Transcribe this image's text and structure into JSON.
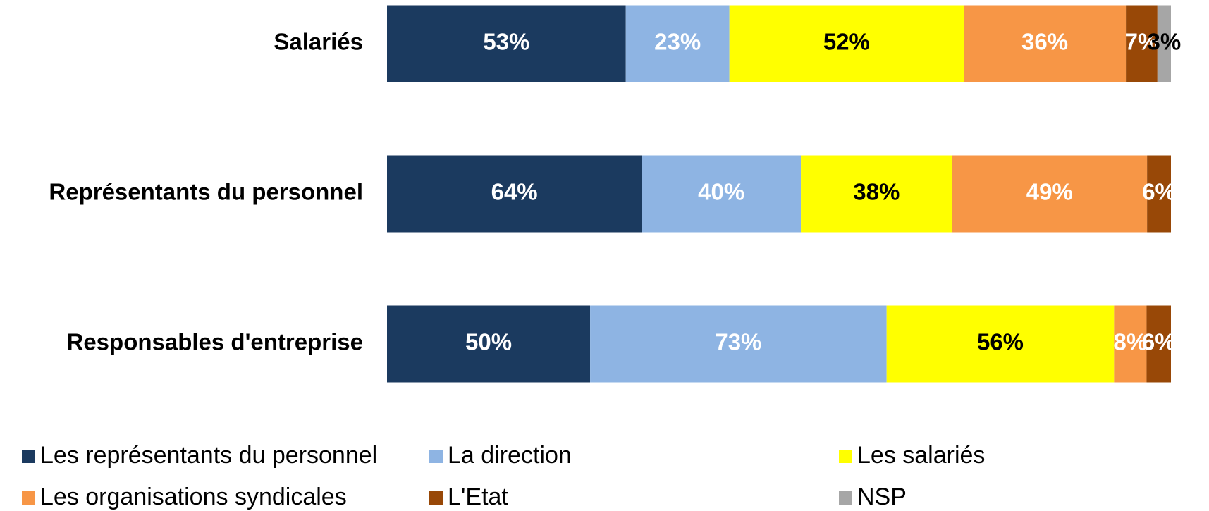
{
  "chart_data": {
    "type": "stacked-bar-100",
    "categories": [
      "Salariés",
      "Représentants du personnel",
      "Responsables d'entreprise"
    ],
    "series": [
      {
        "name": "Les représentants du personnel",
        "color": "#1b3a5f",
        "label_color": "#ffffff",
        "values": [
          53,
          64,
          50
        ],
        "value_labels": [
          "53%",
          "64%",
          "50%"
        ]
      },
      {
        "name": "La direction",
        "color": "#8eb4e3",
        "label_color": "#ffffff",
        "values": [
          23,
          40,
          73
        ],
        "value_labels": [
          "23%",
          "40%",
          "73%"
        ]
      },
      {
        "name": "Les salariés",
        "color": "#ffff00",
        "label_color": "#000000",
        "values": [
          52,
          38,
          56
        ],
        "value_labels": [
          "52%",
          "38%",
          "56%"
        ]
      },
      {
        "name": "Les organisations syndicales",
        "color": "#f79646",
        "label_color": "#ffffff",
        "values": [
          36,
          49,
          8
        ],
        "value_labels": [
          "36%",
          "49%",
          "8%"
        ]
      },
      {
        "name": "L'Etat",
        "color": "#984807",
        "label_color": "#ffffff",
        "values": [
          7,
          6,
          6
        ],
        "value_labels": [
          "7%",
          "6%",
          "6%"
        ]
      },
      {
        "name": "NSP",
        "color": "#a6a6a6",
        "label_color": "#000000",
        "values": [
          3,
          null,
          null
        ],
        "value_labels": [
          "3%",
          null,
          null
        ]
      }
    ],
    "legend": "bottom"
  }
}
